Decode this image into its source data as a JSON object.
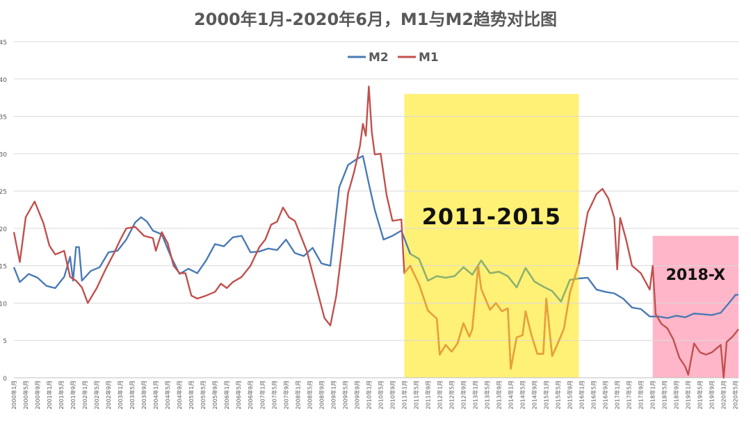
{
  "chart_data": {
    "type": "line",
    "title": "2000年1月-2020年6月，M1与M2趋势对比图",
    "ylim": [
      0,
      45
    ],
    "yticks": [
      "0",
      "5",
      "10",
      "15",
      "20",
      "25",
      "30",
      "35",
      "40",
      "45"
    ],
    "grid": true,
    "legend_position": "top-center",
    "x_start": "2000-01",
    "x_end": "2020-06",
    "xtick_labels": [
      "2000年1月",
      "2000年5月",
      "2000年9月",
      "2001年1月",
      "2001年5月",
      "2001年9月",
      "2002年1月",
      "2002年5月",
      "2002年9月",
      "2003年1月",
      "2003年5月",
      "2003年9月",
      "2004年1月",
      "2004年5月",
      "2004年9月",
      "2005年1月",
      "2005年5月",
      "2005年9月",
      "2006年1月",
      "2006年5月",
      "2006年9月",
      "2007年1月",
      "2007年5月",
      "2007年9月",
      "2008年1月",
      "2008年5月",
      "2008年9月",
      "2009年1月",
      "2009年5月",
      "2009年9月",
      "2010年1月",
      "2010年5月",
      "2010年9月",
      "2011年1月",
      "2011年5月",
      "2011年9月",
      "2012年1月",
      "2012年5月",
      "2012年9月",
      "2013年1月",
      "2013年5月",
      "2013年9月",
      "2014年1月",
      "2014年5月",
      "2014年9月",
      "2015年1月",
      "2015年5月",
      "2015年9月",
      "2016年1月",
      "2016年5月",
      "2016年9月",
      "2017年1月",
      "2017年5月",
      "2017年9月",
      "2018年1月",
      "2018年5月",
      "2018年9月",
      "2019年1月",
      "2019年5月",
      "2019年9月",
      "2020年1月",
      "2020年5月"
    ],
    "series": [
      {
        "name": "M2",
        "color": "#4a7ab5",
        "points": [
          [
            "2000-01",
            14.8
          ],
          [
            "2000-03",
            12.8
          ],
          [
            "2000-06",
            13.9
          ],
          [
            "2000-09",
            13.4
          ],
          [
            "2000-12",
            12.3
          ],
          [
            "2001-03",
            12.0
          ],
          [
            "2001-06",
            13.5
          ],
          [
            "2001-08",
            16.2
          ],
          [
            "2001-09",
            13.0
          ],
          [
            "2001-10",
            17.5
          ],
          [
            "2001-11",
            17.5
          ],
          [
            "2001-12",
            13.0
          ],
          [
            "2002-03",
            14.3
          ],
          [
            "2002-06",
            14.8
          ],
          [
            "2002-09",
            16.8
          ],
          [
            "2002-12",
            17.0
          ],
          [
            "2003-03",
            18.5
          ],
          [
            "2003-06",
            20.8
          ],
          [
            "2003-08",
            21.5
          ],
          [
            "2003-10",
            20.9
          ],
          [
            "2003-12",
            19.7
          ],
          [
            "2004-03",
            19.2
          ],
          [
            "2004-06",
            16.3
          ],
          [
            "2004-09",
            13.9
          ],
          [
            "2004-12",
            14.6
          ],
          [
            "2005-03",
            14.0
          ],
          [
            "2005-06",
            15.7
          ],
          [
            "2005-09",
            17.9
          ],
          [
            "2005-12",
            17.6
          ],
          [
            "2006-03",
            18.8
          ],
          [
            "2006-06",
            19.0
          ],
          [
            "2006-09",
            16.8
          ],
          [
            "2006-12",
            16.9
          ],
          [
            "2007-03",
            17.3
          ],
          [
            "2007-06",
            17.1
          ],
          [
            "2007-09",
            18.5
          ],
          [
            "2007-12",
            16.7
          ],
          [
            "2008-03",
            16.3
          ],
          [
            "2008-06",
            17.4
          ],
          [
            "2008-09",
            15.3
          ],
          [
            "2008-12",
            15.0
          ],
          [
            "2009-03",
            25.5
          ],
          [
            "2009-06",
            28.5
          ],
          [
            "2009-09",
            29.3
          ],
          [
            "2009-11",
            29.7
          ],
          [
            "2010-01",
            26.0
          ],
          [
            "2010-03",
            22.5
          ],
          [
            "2010-06",
            18.5
          ],
          [
            "2010-09",
            19.0
          ],
          [
            "2010-12",
            19.7
          ],
          [
            "2011-03",
            16.6
          ],
          [
            "2011-06",
            15.9
          ],
          [
            "2011-09",
            13.0
          ],
          [
            "2011-12",
            13.6
          ],
          [
            "2012-03",
            13.4
          ],
          [
            "2012-06",
            13.6
          ],
          [
            "2012-09",
            14.8
          ],
          [
            "2012-12",
            13.8
          ],
          [
            "2013-03",
            15.7
          ],
          [
            "2013-06",
            14.0
          ],
          [
            "2013-09",
            14.2
          ],
          [
            "2013-12",
            13.6
          ],
          [
            "2014-03",
            12.1
          ],
          [
            "2014-06",
            14.7
          ],
          [
            "2014-09",
            12.9
          ],
          [
            "2014-12",
            12.2
          ],
          [
            "2015-03",
            11.6
          ],
          [
            "2015-06",
            10.2
          ],
          [
            "2015-09",
            13.1
          ],
          [
            "2015-12",
            13.3
          ],
          [
            "2016-03",
            13.4
          ],
          [
            "2016-06",
            11.8
          ],
          [
            "2016-09",
            11.5
          ],
          [
            "2016-12",
            11.3
          ],
          [
            "2017-03",
            10.6
          ],
          [
            "2017-06",
            9.4
          ],
          [
            "2017-09",
            9.2
          ],
          [
            "2017-12",
            8.2
          ],
          [
            "2018-03",
            8.2
          ],
          [
            "2018-06",
            8.0
          ],
          [
            "2018-09",
            8.3
          ],
          [
            "2018-12",
            8.1
          ],
          [
            "2019-03",
            8.6
          ],
          [
            "2019-06",
            8.5
          ],
          [
            "2019-09",
            8.4
          ],
          [
            "2019-12",
            8.7
          ],
          [
            "2020-03",
            10.1
          ],
          [
            "2020-05",
            11.1
          ],
          [
            "2020-06",
            11.1
          ]
        ]
      },
      {
        "name": "M1",
        "color": "#c0504d",
        "points": [
          [
            "2000-01",
            19.5
          ],
          [
            "2000-03",
            15.5
          ],
          [
            "2000-05",
            21.5
          ],
          [
            "2000-08",
            23.6
          ],
          [
            "2000-11",
            20.7
          ],
          [
            "2001-01",
            17.7
          ],
          [
            "2001-03",
            16.5
          ],
          [
            "2001-06",
            17.0
          ],
          [
            "2001-08",
            13.5
          ],
          [
            "2001-10",
            13.0
          ],
          [
            "2001-12",
            12.1
          ],
          [
            "2002-02",
            10.0
          ],
          [
            "2002-05",
            12.0
          ],
          [
            "2002-08",
            14.5
          ],
          [
            "2002-11",
            16.8
          ],
          [
            "2003-01",
            18.5
          ],
          [
            "2003-03",
            20.0
          ],
          [
            "2003-06",
            20.2
          ],
          [
            "2003-09",
            19.0
          ],
          [
            "2003-12",
            18.7
          ],
          [
            "2004-01",
            17.0
          ],
          [
            "2004-03",
            19.5
          ],
          [
            "2004-05",
            18.0
          ],
          [
            "2004-07",
            15.0
          ],
          [
            "2004-09",
            14.0
          ],
          [
            "2004-11",
            14.0
          ],
          [
            "2005-01",
            11.0
          ],
          [
            "2005-03",
            10.6
          ],
          [
            "2005-06",
            11.0
          ],
          [
            "2005-09",
            11.5
          ],
          [
            "2005-11",
            12.6
          ],
          [
            "2006-01",
            12.0
          ],
          [
            "2006-03",
            12.8
          ],
          [
            "2006-06",
            13.5
          ],
          [
            "2006-09",
            15.0
          ],
          [
            "2006-12",
            17.5
          ],
          [
            "2007-02",
            18.5
          ],
          [
            "2007-04",
            20.5
          ],
          [
            "2007-06",
            20.9
          ],
          [
            "2007-08",
            22.8
          ],
          [
            "2007-10",
            21.5
          ],
          [
            "2007-12",
            21.0
          ],
          [
            "2008-02",
            19.0
          ],
          [
            "2008-04",
            17.0
          ],
          [
            "2008-06",
            14.0
          ],
          [
            "2008-08",
            11.0
          ],
          [
            "2008-10",
            8.0
          ],
          [
            "2008-12",
            7.0
          ],
          [
            "2009-02",
            11.0
          ],
          [
            "2009-04",
            17.5
          ],
          [
            "2009-06",
            24.7
          ],
          [
            "2009-08",
            27.5
          ],
          [
            "2009-10",
            31.0
          ],
          [
            "2009-11",
            34.0
          ],
          [
            "2009-12",
            32.4
          ],
          [
            "2010-01",
            39.0
          ],
          [
            "2010-02",
            33.0
          ],
          [
            "2010-03",
            29.9
          ],
          [
            "2010-05",
            30.0
          ],
          [
            "2010-07",
            24.5
          ],
          [
            "2010-09",
            21.0
          ],
          [
            "2010-12",
            21.2
          ],
          [
            "2011-01",
            14.0
          ],
          [
            "2011-03",
            15.0
          ],
          [
            "2011-06",
            12.5
          ],
          [
            "2011-09",
            9.0
          ],
          [
            "2011-12",
            7.9
          ],
          [
            "2012-01",
            3.1
          ],
          [
            "2012-03",
            4.4
          ],
          [
            "2012-05",
            3.5
          ],
          [
            "2012-07",
            4.6
          ],
          [
            "2012-09",
            7.3
          ],
          [
            "2012-11",
            5.5
          ],
          [
            "2012-12",
            6.5
          ],
          [
            "2013-02",
            15.0
          ],
          [
            "2013-03",
            11.9
          ],
          [
            "2013-06",
            9.1
          ],
          [
            "2013-08",
            10.0
          ],
          [
            "2013-10",
            8.9
          ],
          [
            "2013-12",
            9.3
          ],
          [
            "2014-01",
            1.2
          ],
          [
            "2014-03",
            5.4
          ],
          [
            "2014-05",
            5.7
          ],
          [
            "2014-06",
            8.9
          ],
          [
            "2014-08",
            5.7
          ],
          [
            "2014-10",
            3.2
          ],
          [
            "2014-12",
            3.2
          ],
          [
            "2015-01",
            10.6
          ],
          [
            "2015-03",
            2.9
          ],
          [
            "2015-05",
            4.7
          ],
          [
            "2015-07",
            6.6
          ],
          [
            "2015-09",
            11.4
          ],
          [
            "2015-12",
            15.2
          ],
          [
            "2016-03",
            22.1
          ],
          [
            "2016-06",
            24.6
          ],
          [
            "2016-08",
            25.3
          ],
          [
            "2016-10",
            24.0
          ],
          [
            "2016-12",
            21.4
          ],
          [
            "2017-01",
            14.5
          ],
          [
            "2017-02",
            21.4
          ],
          [
            "2017-04",
            18.5
          ],
          [
            "2017-06",
            15.0
          ],
          [
            "2017-09",
            14.0
          ],
          [
            "2017-12",
            11.8
          ],
          [
            "2018-01",
            15.0
          ],
          [
            "2018-02",
            8.5
          ],
          [
            "2018-04",
            7.2
          ],
          [
            "2018-06",
            6.6
          ],
          [
            "2018-08",
            5.1
          ],
          [
            "2018-10",
            2.7
          ],
          [
            "2018-12",
            1.5
          ],
          [
            "2019-01",
            0.4
          ],
          [
            "2019-03",
            4.6
          ],
          [
            "2019-05",
            3.4
          ],
          [
            "2019-07",
            3.1
          ],
          [
            "2019-09",
            3.4
          ],
          [
            "2019-12",
            4.4
          ],
          [
            "2020-01",
            0.0
          ],
          [
            "2020-02",
            4.8
          ],
          [
            "2020-04",
            5.5
          ],
          [
            "2020-06",
            6.5
          ]
        ]
      }
    ],
    "annotations": [
      {
        "label": "2011-2015",
        "color": "#fff176",
        "start": "2011-01",
        "end": "2015-12",
        "top": 38
      },
      {
        "label": "2018-X",
        "color": "#ffb6c8",
        "start": "2018-01",
        "end": "2020-06",
        "top": 19
      }
    ]
  }
}
